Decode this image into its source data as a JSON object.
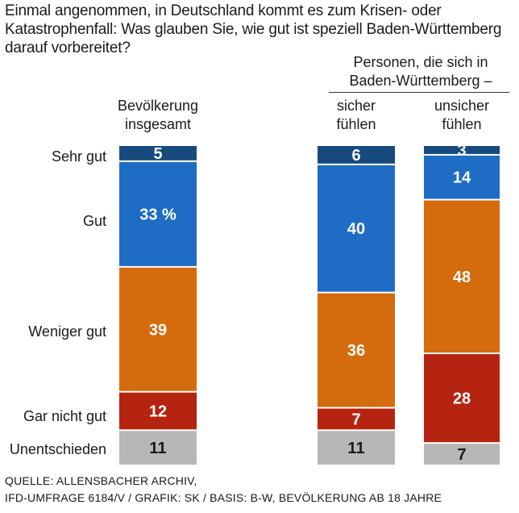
{
  "chart_data": {
    "type": "bar",
    "stacked": true,
    "orientation": "vertical",
    "title": "Einmal angenommen, in Deutschland kommt es zum Krisen- oder Katastrophenfall: Was glauben Sie, wie gut ist speziell Baden-Württemberg darauf vorbereitet?",
    "categories": [
      "Sehr gut",
      "Gut",
      "Weniger gut",
      "Gar nicht gut",
      "Unentschieden"
    ],
    "group_label": "Personen, die sich in Baden-Württemberg –",
    "columns": [
      {
        "label_lines": [
          "Bevölkerung",
          "insgesamt"
        ],
        "values": [
          5,
          33,
          39,
          12,
          11
        ],
        "value_labels": [
          "5",
          "33 %",
          "39",
          "12",
          "11"
        ]
      },
      {
        "label_lines": [
          "sicher",
          "fühlen"
        ],
        "values": [
          6,
          40,
          36,
          7,
          11
        ],
        "value_labels": [
          "6",
          "40",
          "36",
          "7",
          "11"
        ]
      },
      {
        "label_lines": [
          "unsicher",
          "fühlen"
        ],
        "values": [
          3,
          14,
          48,
          28,
          7
        ],
        "value_labels": [
          "3",
          "14",
          "48",
          "28",
          "7"
        ]
      }
    ],
    "colors": [
      "#174a7e",
      "#1f6cc4",
      "#d46b0c",
      "#b52410",
      "#b7b7b7"
    ],
    "value_label_colors": [
      "#ffffff",
      "#ffffff",
      "#ffffff",
      "#ffffff",
      "#1a1a1a"
    ],
    "ylim": [
      0,
      100
    ]
  },
  "source_lines": [
    "QUELLE: ALLENSBACHER ARCHIV,",
    "IFD-UMFRAGE 6184/V / GRAFIK: SK / BASIS: B-W, BEVÖLKERUNG AB 18 JAHRE"
  ]
}
